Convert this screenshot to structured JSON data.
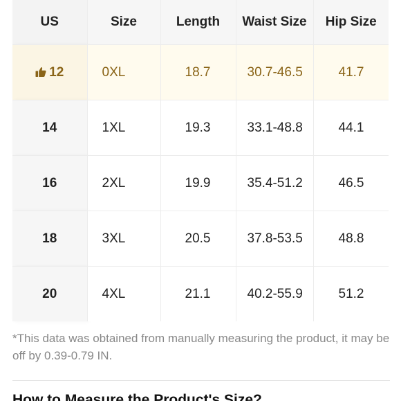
{
  "table": {
    "headers": [
      "US",
      "Size",
      "Length",
      "Waist Size",
      "Hip Size"
    ],
    "rows": [
      {
        "us": "12",
        "size": "0XL",
        "length": "18.7",
        "waist": "30.7-46.5",
        "hip": "41.7",
        "recommended": true
      },
      {
        "us": "14",
        "size": "1XL",
        "length": "19.3",
        "waist": "33.1-48.8",
        "hip": "44.1",
        "recommended": false
      },
      {
        "us": "16",
        "size": "2XL",
        "length": "19.9",
        "waist": "35.4-51.2",
        "hip": "46.5",
        "recommended": false
      },
      {
        "us": "18",
        "size": "3XL",
        "length": "20.5",
        "waist": "37.8-53.5",
        "hip": "48.8",
        "recommended": false
      },
      {
        "us": "20",
        "size": "4XL",
        "length": "21.1",
        "waist": "40.2-55.9",
        "hip": "51.2",
        "recommended": false
      }
    ]
  },
  "recommended_icon": "thumbs-up-icon",
  "colors": {
    "recommended_text": "#8a6417",
    "recommended_bg": "#fffbee",
    "header_bg": "#f6f6f6",
    "note_text": "#888888"
  },
  "note": "*This data was obtained from manually measuring the product, it may be off by 0.39-0.79 IN.",
  "section": {
    "title": "How to Measure the Product's Size?"
  }
}
